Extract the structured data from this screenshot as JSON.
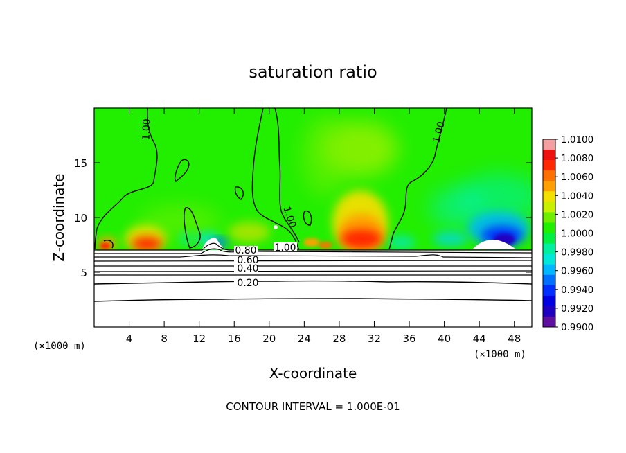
{
  "chart_data": {
    "type": "heatmap",
    "title": "saturation ratio",
    "xlabel": "X-coordinate",
    "ylabel": "Z-coordinate",
    "x_unit": "(×1000 m)",
    "x_unit_right": "(×1000 m)",
    "xlim": [
      0,
      50
    ],
    "ylim": [
      0,
      20
    ],
    "x_ticks": [
      4,
      8,
      12,
      16,
      20,
      24,
      28,
      32,
      36,
      40,
      44,
      48
    ],
    "y_ticks": [
      5,
      10,
      15
    ],
    "colorbar": {
      "levels": [
        "1.0100",
        "1.0080",
        "1.0060",
        "1.0040",
        "1.0020",
        "1.0000",
        "0.9980",
        "0.9960",
        "0.9940",
        "0.9920",
        "0.9900"
      ],
      "colors": [
        "#f4a0a0",
        "#ef1010",
        "#ff2800",
        "#ff7000",
        "#ffa000",
        "#f2e000",
        "#c8f000",
        "#70ee00",
        "#20f000",
        "#00f040",
        "#00f0a0",
        "#00e8d8",
        "#00b8ff",
        "#0070ff",
        "#0030ff",
        "#0000e0",
        "#2000c0",
        "#6010a0"
      ]
    },
    "contour_labels": [
      {
        "text": "1.00",
        "x": 3.0,
        "y": 18.2
      },
      {
        "text": "1.00",
        "x": 21.5,
        "y": 10.0
      },
      {
        "text": "1.00",
        "x": 39.8,
        "y": 17.9
      },
      {
        "text": "1.00",
        "x": 22.2,
        "y": 7.5
      },
      {
        "text": "0.80",
        "x": 16.5,
        "y": 7.0
      },
      {
        "text": "0.60",
        "x": 17.0,
        "y": 6.2
      },
      {
        "text": "0.40",
        "x": 17.0,
        "y": 5.5
      },
      {
        "text": "0.20",
        "x": 17.0,
        "y": 4.0
      }
    ],
    "contour_interval_note": "CONTOUR INTERVAL = 1.000E-01"
  }
}
